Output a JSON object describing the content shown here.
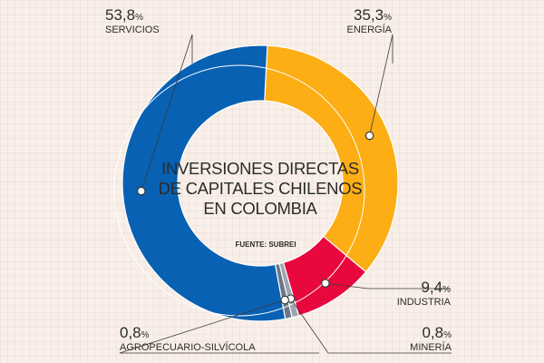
{
  "chart_data": {
    "type": "pie",
    "title_lines": [
      "INVERSIONES DIRECTAS",
      "DE CAPITALES CHILENOS",
      "EN COLOMBIA"
    ],
    "source": "FUENTE: SUBREI",
    "slices": [
      {
        "label": "ENERGÍA",
        "value": 35.3,
        "value_text": "35,3",
        "color": "#fcae14"
      },
      {
        "label": "INDUSTRIA",
        "value": 9.4,
        "value_text": "9,4",
        "color": "#e8083e"
      },
      {
        "label": "MINERÍA",
        "value": 0.8,
        "value_text": "0,8",
        "color": "#9ba5b1"
      },
      {
        "label": "AGROPECUARIO-SILVÍCOLA",
        "value": 0.8,
        "value_text": "0,8",
        "color": "#6a7785"
      },
      {
        "label": "SERVICIOS",
        "value": 53.8,
        "value_text": "53,8",
        "color": "#0861b3"
      }
    ],
    "unit": "%"
  }
}
